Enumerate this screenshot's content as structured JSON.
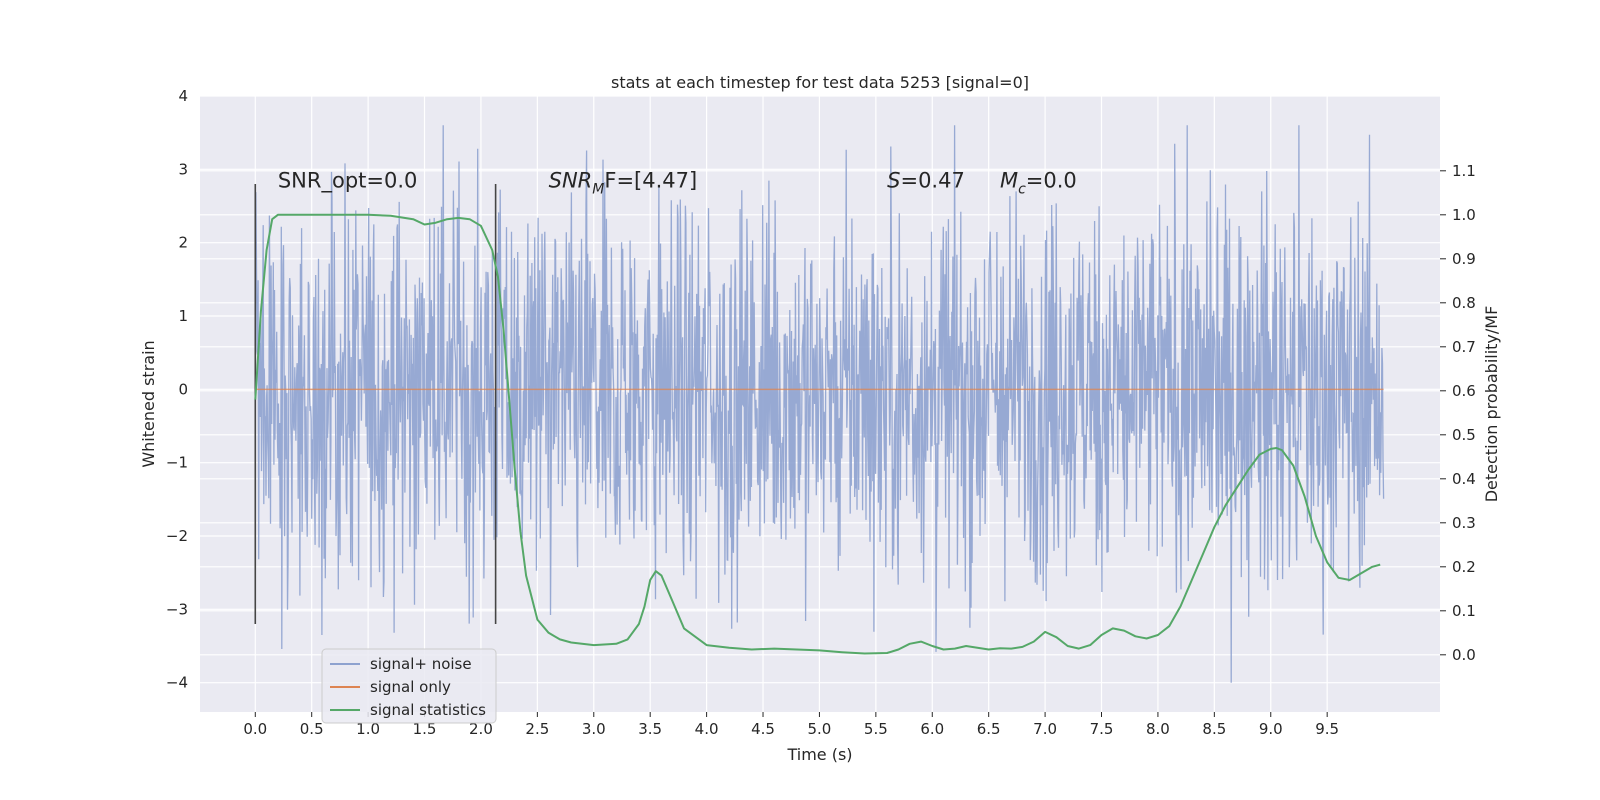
{
  "chart_data": {
    "type": "line",
    "title": "stats at each timestep for test data 5253 [signal=0]",
    "xlabel": "Time (s)",
    "ylabel": "Whitened strain",
    "y2label": "Detection probability/MF",
    "xlim": [
      -0.49,
      10.5
    ],
    "ylim": [
      -4.4,
      4.0
    ],
    "y2lim": [
      -0.13,
      1.27
    ],
    "xticks": [
      0.0,
      0.5,
      1.0,
      1.5,
      2.0,
      2.5,
      3.0,
      3.5,
      4.0,
      4.5,
      5.0,
      5.5,
      6.0,
      6.5,
      7.0,
      7.5,
      8.0,
      8.5,
      9.0,
      9.5
    ],
    "xtick_labels": [
      "0.0",
      "0.5",
      "1.0",
      "1.5",
      "2.0",
      "2.5",
      "3.0",
      "3.5",
      "4.0",
      "4.5",
      "5.0",
      "5.5",
      "6.0",
      "6.5",
      "7.0",
      "7.5",
      "8.0",
      "8.5",
      "9.0",
      "9.5"
    ],
    "yticks": [
      4,
      3,
      2,
      1,
      0,
      -1,
      -2,
      -3,
      -4
    ],
    "ytick_labels": [
      "4",
      "3",
      "2",
      "1",
      "0",
      "−1",
      "−2",
      "−3",
      "−4"
    ],
    "y2ticks": [
      1.1,
      1.0,
      0.9,
      0.8,
      0.7,
      0.6,
      0.5,
      0.4,
      0.3,
      0.2,
      0.1,
      0.0
    ],
    "y2tick_labels": [
      "1.1",
      "1.0",
      "0.9",
      "0.8",
      "0.7",
      "0.6",
      "0.5",
      "0.4",
      "0.3",
      "0.2",
      "0.1",
      "0.0"
    ],
    "grid": true,
    "legend_position": "lower-left",
    "series": [
      {
        "name": "signal+ noise",
        "axis": "left",
        "color": "#8ea2cf",
        "x_range": [
          0.0,
          10.0
        ],
        "note_values": "dense whitened noise, roughly within [-2.6, 2.6] with peaks up to 3.6 and down to -4.0"
      },
      {
        "name": "signal only",
        "axis": "left",
        "color": "#dd8452",
        "x": [
          0.0,
          10.0
        ],
        "y": [
          0.0,
          0.0
        ]
      },
      {
        "name": "signal statistics",
        "axis": "right",
        "color": "#55a868",
        "x": [
          0.0,
          0.05,
          0.1,
          0.15,
          0.2,
          0.3,
          0.5,
          0.8,
          1.0,
          1.2,
          1.4,
          1.5,
          1.6,
          1.7,
          1.8,
          1.9,
          2.0,
          2.1,
          2.15,
          2.2,
          2.25,
          2.3,
          2.35,
          2.4,
          2.5,
          2.6,
          2.7,
          2.8,
          3.0,
          3.2,
          3.3,
          3.4,
          3.45,
          3.5,
          3.55,
          3.6,
          3.7,
          3.8,
          4.0,
          4.2,
          4.4,
          4.6,
          4.8,
          5.0,
          5.2,
          5.4,
          5.6,
          5.7,
          5.8,
          5.9,
          6.0,
          6.1,
          6.2,
          6.3,
          6.4,
          6.5,
          6.6,
          6.7,
          6.8,
          6.9,
          7.0,
          7.1,
          7.2,
          7.3,
          7.4,
          7.5,
          7.6,
          7.7,
          7.8,
          7.9,
          8.0,
          8.1,
          8.2,
          8.3,
          8.4,
          8.5,
          8.6,
          8.7,
          8.8,
          8.9,
          9.0,
          9.05,
          9.1,
          9.2,
          9.3,
          9.4,
          9.5,
          9.6,
          9.7,
          9.8,
          9.9,
          9.97
        ],
        "y": [
          0.58,
          0.78,
          0.92,
          0.99,
          1.0,
          1.0,
          1.0,
          1.0,
          1.0,
          0.998,
          0.99,
          0.978,
          0.982,
          0.99,
          0.993,
          0.99,
          0.975,
          0.92,
          0.86,
          0.74,
          0.58,
          0.42,
          0.28,
          0.18,
          0.08,
          0.05,
          0.035,
          0.028,
          0.022,
          0.025,
          0.035,
          0.07,
          0.11,
          0.17,
          0.19,
          0.18,
          0.12,
          0.06,
          0.022,
          0.016,
          0.012,
          0.014,
          0.012,
          0.01,
          0.006,
          0.003,
          0.004,
          0.012,
          0.025,
          0.03,
          0.02,
          0.012,
          0.014,
          0.02,
          0.016,
          0.012,
          0.015,
          0.014,
          0.018,
          0.03,
          0.052,
          0.04,
          0.02,
          0.014,
          0.022,
          0.045,
          0.06,
          0.055,
          0.042,
          0.037,
          0.045,
          0.065,
          0.11,
          0.17,
          0.23,
          0.29,
          0.34,
          0.38,
          0.42,
          0.455,
          0.468,
          0.47,
          0.465,
          0.43,
          0.36,
          0.27,
          0.21,
          0.175,
          0.17,
          0.185,
          0.2,
          0.205
        ]
      }
    ],
    "vlines": {
      "color": "#454545",
      "x": [
        0.0,
        2.13
      ],
      "ymin": -3.2,
      "ymax": 2.8
    },
    "annotations": [
      {
        "text": "SNR_opt=0.0",
        "x": 0.2,
        "y": 2.75
      },
      {
        "text_pre": "SNR",
        "text_sub": "M",
        "text_post": "F=[4.47]",
        "x": 2.6,
        "y": 2.75
      },
      {
        "text_pre": "S",
        "text_sub": "",
        "text_post": "=0.47",
        "x": 5.6,
        "y": 2.75
      },
      {
        "text_pre": "M",
        "text_sub": "c",
        "text_post": "=0.0",
        "x": 6.6,
        "y": 2.75
      }
    ]
  }
}
